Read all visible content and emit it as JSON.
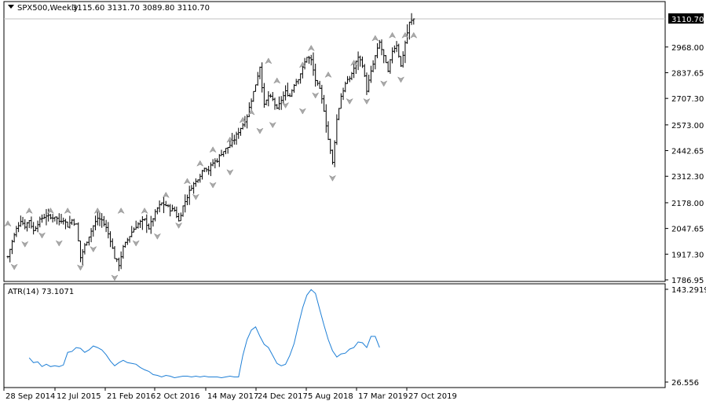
{
  "window": {
    "menu_icon": "triangle-down-icon",
    "symbol": "SPX500,Weekly",
    "ohlc": "3115.60 3131.70 3089.80 3110.70"
  },
  "colors": {
    "background": "#ffffff",
    "bars": "#000000",
    "atr_line": "#1e7fd6",
    "fractal": "#a9a9a9",
    "current_price_box": "#000000",
    "separator": "#000000",
    "price_line": "#c0c0c0"
  },
  "chart_data": [
    {
      "type": "bar",
      "subtype": "ohlc",
      "symbol": "SPX500",
      "timeframe": "Weekly",
      "current_price": "3110.70",
      "ylim": [
        1786.95,
        3175
      ],
      "y_ticks": [
        "2968.00",
        "2837.65",
        "2707.30",
        "2573.00",
        "2442.65",
        "2312.30",
        "2178.00",
        "2047.65",
        "1917.30",
        "1786.95"
      ],
      "x_ticks": [
        "28 Sep 2014",
        "12 Jul 2015",
        "21 Feb 2016",
        "2 Oct 2016",
        "14 May 2017",
        "24 Dec 2017",
        "5 Aug 2018",
        "17 Mar 2019",
        "27 Oct 2019"
      ],
      "close_path": [
        [
          0,
          1905
        ],
        [
          2,
          1980
        ],
        [
          4,
          2045
        ],
        [
          6,
          2090
        ],
        [
          8,
          2060
        ],
        [
          10,
          2090
        ],
        [
          12,
          2035
        ],
        [
          14,
          2075
        ],
        [
          16,
          2100
        ],
        [
          18,
          2115
        ],
        [
          20,
          2100
        ],
        [
          22,
          2110
        ],
        [
          24,
          2085
        ],
        [
          26,
          2095
        ],
        [
          28,
          2060
        ],
        [
          30,
          2090
        ],
        [
          32,
          2065
        ],
        [
          34,
          1900
        ],
        [
          36,
          1960
        ],
        [
          38,
          2010
        ],
        [
          40,
          2060
        ],
        [
          42,
          2100
        ],
        [
          44,
          2090
        ],
        [
          46,
          2050
        ],
        [
          48,
          1990
        ],
        [
          50,
          1900
        ],
        [
          52,
          1865
        ],
        [
          54,
          1950
        ],
        [
          56,
          1990
        ],
        [
          58,
          2030
        ],
        [
          60,
          2060
        ],
        [
          62,
          2080
        ],
        [
          64,
          2090
        ],
        [
          66,
          2050
        ],
        [
          68,
          2100
        ],
        [
          70,
          2150
        ],
        [
          72,
          2175
        ],
        [
          74,
          2165
        ],
        [
          76,
          2145
        ],
        [
          78,
          2140
        ],
        [
          80,
          2085
        ],
        [
          82,
          2160
        ],
        [
          84,
          2210
        ],
        [
          86,
          2260
        ],
        [
          88,
          2285
        ],
        [
          90,
          2320
        ],
        [
          92,
          2360
        ],
        [
          94,
          2345
        ],
        [
          96,
          2380
        ],
        [
          98,
          2395
        ],
        [
          100,
          2430
        ],
        [
          102,
          2450
        ],
        [
          104,
          2470
        ],
        [
          106,
          2500
        ],
        [
          108,
          2540
        ],
        [
          110,
          2575
        ],
        [
          112,
          2620
        ],
        [
          114,
          2700
        ],
        [
          116,
          2780
        ],
        [
          118,
          2870
        ],
        [
          120,
          2670
        ],
        [
          122,
          2720
        ],
        [
          124,
          2700
        ],
        [
          126,
          2650
        ],
        [
          128,
          2700
        ],
        [
          130,
          2740
        ],
        [
          132,
          2720
        ],
        [
          134,
          2780
        ],
        [
          136,
          2810
        ],
        [
          138,
          2860
        ],
        [
          140,
          2920
        ],
        [
          142,
          2900
        ],
        [
          144,
          2800
        ],
        [
          146,
          2750
        ],
        [
          148,
          2650
        ],
        [
          150,
          2500
        ],
        [
          152,
          2380
        ],
        [
          154,
          2600
        ],
        [
          156,
          2720
        ],
        [
          158,
          2780
        ],
        [
          160,
          2810
        ],
        [
          162,
          2860
        ],
        [
          164,
          2920
        ],
        [
          166,
          2880
        ],
        [
          168,
          2750
        ],
        [
          170,
          2840
        ],
        [
          172,
          2920
        ],
        [
          174,
          2990
        ],
        [
          176,
          2920
        ],
        [
          178,
          2840
        ],
        [
          180,
          2950
        ],
        [
          182,
          2980
        ],
        [
          184,
          2870
        ],
        [
          186,
          2990
        ],
        [
          188,
          3090
        ],
        [
          190,
          3110
        ]
      ],
      "fractals_up": [
        [
          0,
          2055
        ],
        [
          10,
          2120
        ],
        [
          20,
          2120
        ],
        [
          28,
          2120
        ],
        [
          42,
          2120
        ],
        [
          53,
          2120
        ],
        [
          64,
          2120
        ],
        [
          74,
          2200
        ],
        [
          84,
          2270
        ],
        [
          90,
          2360
        ],
        [
          96,
          2430
        ],
        [
          104,
          2480
        ],
        [
          110,
          2580
        ],
        [
          114,
          2620
        ],
        [
          122,
          2880
        ],
        [
          126,
          2780
        ],
        [
          138,
          2860
        ],
        [
          142,
          2945
        ],
        [
          150,
          2810
        ],
        [
          162,
          2870
        ],
        [
          172,
          2995
        ],
        [
          180,
          3010
        ],
        [
          186,
          3010
        ],
        [
          190,
          3010
        ]
      ],
      "fractals_down": [
        [
          3,
          1870
        ],
        [
          8,
          1985
        ],
        [
          16,
          2030
        ],
        [
          24,
          1990
        ],
        [
          34,
          1867
        ],
        [
          40,
          1960
        ],
        [
          50,
          1815
        ],
        [
          60,
          1990
        ],
        [
          70,
          2025
        ],
        [
          80,
          2080
        ],
        [
          88,
          2225
        ],
        [
          96,
          2285
        ],
        [
          104,
          2350
        ],
        [
          118,
          2560
        ],
        [
          124,
          2590
        ],
        [
          130,
          2690
        ],
        [
          138,
          2660
        ],
        [
          144,
          2740
        ],
        [
          152,
          2320
        ],
        [
          160,
          2710
        ],
        [
          168,
          2710
        ],
        [
          176,
          2800
        ],
        [
          184,
          2820
        ]
      ]
    },
    {
      "type": "line",
      "indicator": "ATR",
      "title": "ATR(14) 73.1071",
      "period": 14,
      "current_value": "73.1071",
      "ylim": [
        26.556,
        143.2919
      ],
      "y_ticks": [
        "143.2919",
        "26.556"
      ],
      "points": [
        [
          10,
          57
        ],
        [
          12,
          51
        ],
        [
          14,
          52
        ],
        [
          16,
          46
        ],
        [
          18,
          49
        ],
        [
          20,
          46
        ],
        [
          22,
          47
        ],
        [
          24,
          46
        ],
        [
          26,
          48
        ],
        [
          28,
          64
        ],
        [
          30,
          65
        ],
        [
          32,
          70
        ],
        [
          34,
          69
        ],
        [
          36,
          64
        ],
        [
          38,
          67
        ],
        [
          40,
          72
        ],
        [
          42,
          70
        ],
        [
          44,
          67
        ],
        [
          46,
          61
        ],
        [
          48,
          53
        ],
        [
          50,
          47
        ],
        [
          52,
          51
        ],
        [
          54,
          54
        ],
        [
          56,
          51
        ],
        [
          58,
          50
        ],
        [
          60,
          49
        ],
        [
          62,
          45
        ],
        [
          64,
          42
        ],
        [
          66,
          40
        ],
        [
          68,
          36
        ],
        [
          70,
          35
        ],
        [
          72,
          33
        ],
        [
          74,
          35
        ],
        [
          76,
          34
        ],
        [
          78,
          32
        ],
        [
          80,
          33
        ],
        [
          82,
          34
        ],
        [
          84,
          34
        ],
        [
          86,
          33
        ],
        [
          88,
          34
        ],
        [
          90,
          33
        ],
        [
          92,
          34
        ],
        [
          94,
          33
        ],
        [
          96,
          33
        ],
        [
          98,
          33
        ],
        [
          100,
          32
        ],
        [
          102,
          33
        ],
        [
          104,
          34
        ],
        [
          106,
          33
        ],
        [
          108,
          33
        ],
        [
          110,
          60
        ],
        [
          112,
          80
        ],
        [
          114,
          92
        ],
        [
          116,
          96
        ],
        [
          118,
          84
        ],
        [
          120,
          74
        ],
        [
          122,
          70
        ],
        [
          124,
          60
        ],
        [
          126,
          50
        ],
        [
          128,
          47
        ],
        [
          130,
          49
        ],
        [
          132,
          60
        ],
        [
          134,
          75
        ],
        [
          136,
          98
        ],
        [
          138,
          120
        ],
        [
          140,
          136
        ],
        [
          142,
          143
        ],
        [
          144,
          138
        ],
        [
          146,
          118
        ],
        [
          148,
          98
        ],
        [
          150,
          80
        ],
        [
          152,
          66
        ],
        [
          154,
          58
        ],
        [
          156,
          62
        ],
        [
          158,
          63
        ],
        [
          160,
          68
        ],
        [
          162,
          70
        ],
        [
          164,
          77
        ],
        [
          166,
          76
        ],
        [
          168,
          70
        ],
        [
          170,
          84
        ],
        [
          172,
          84
        ],
        [
          174,
          70
        ]
      ]
    }
  ]
}
